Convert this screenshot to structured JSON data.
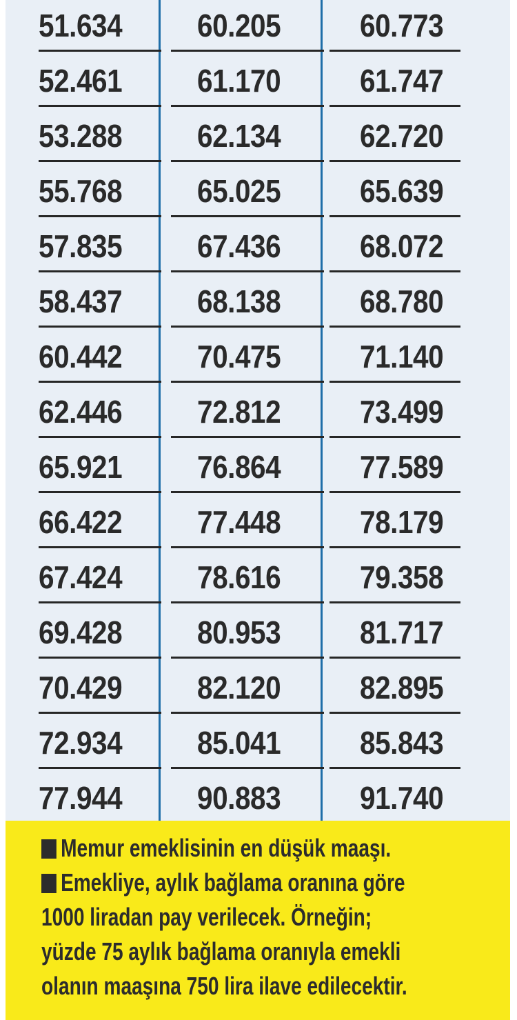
{
  "table": {
    "rows": [
      [
        "51.634",
        "60.205",
        "60.773"
      ],
      [
        "52.461",
        "61.170",
        "61.747"
      ],
      [
        "53.288",
        "62.134",
        "62.720"
      ],
      [
        "55.768",
        "65.025",
        "65.639"
      ],
      [
        "57.835",
        "67.436",
        "68.072"
      ],
      [
        "58.437",
        "68.138",
        "68.780"
      ],
      [
        "60.442",
        "70.475",
        "71.140"
      ],
      [
        "62.446",
        "72.812",
        "73.499"
      ],
      [
        "65.921",
        "76.864",
        "77.589"
      ],
      [
        "66.422",
        "77.448",
        "78.179"
      ],
      [
        "67.424",
        "78.616",
        "79.358"
      ],
      [
        "69.428",
        "80.953",
        "81.717"
      ],
      [
        "70.429",
        "82.120",
        "82.895"
      ],
      [
        "72.934",
        "85.041",
        "85.843"
      ],
      [
        "77.944",
        "90.883",
        "91.740"
      ]
    ]
  },
  "note": {
    "lines": [
      "Memur emeklisinin en düşük maaşı.",
      "Emekliye, aylık bağlama oranına göre",
      "1000 liradan pay verilecek. Örneğin;",
      "yüzde 75 aylık bağlama oranıyla emekli",
      "olanın maaşına 750 lira ilave edilecektir."
    ]
  },
  "colors": {
    "table_background": "#e9eff6",
    "divider": "#1f6ea8",
    "note_background": "#f9ea1a",
    "text": "#2a2a2a"
  }
}
